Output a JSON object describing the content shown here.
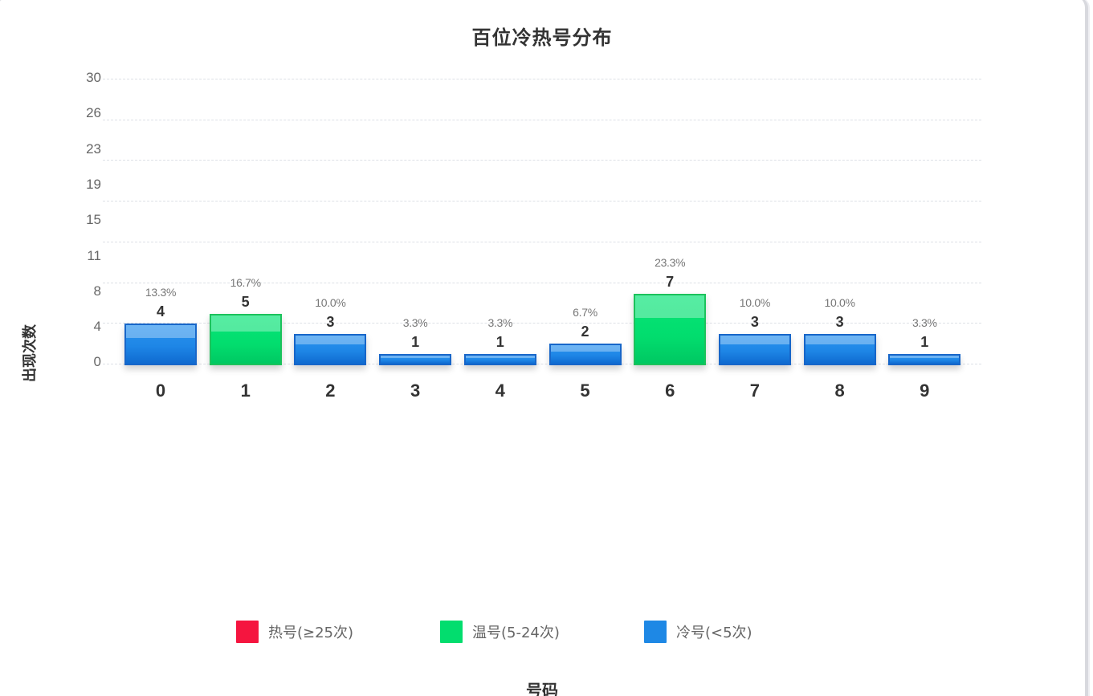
{
  "chart_data": {
    "type": "bar",
    "title": "百位冷热号分布",
    "xlabel": "号码",
    "ylabel": "出现次数",
    "categories": [
      "0",
      "1",
      "2",
      "3",
      "4",
      "5",
      "6",
      "7",
      "8",
      "9"
    ],
    "values": [
      4,
      5,
      3,
      1,
      1,
      2,
      7,
      3,
      3,
      1
    ],
    "percent_labels": [
      "13.3%",
      "16.7%",
      "10.0%",
      "3.3%",
      "3.3%",
      "6.7%",
      "23.3%",
      "10.0%",
      "10.0%",
      "3.3%"
    ],
    "classes": [
      "cold",
      "warm",
      "cold",
      "cold",
      "cold",
      "cold",
      "warm",
      "cold",
      "cold",
      "cold"
    ],
    "yticks": [
      "30",
      "26",
      "23",
      "19",
      "15",
      "11",
      "8",
      "4",
      "0"
    ],
    "ylim": [
      0,
      30
    ],
    "grid": true,
    "legend_position": "bottom",
    "legend": [
      {
        "key": "hot",
        "label": "热号(≥25次)",
        "color": "#f5153f"
      },
      {
        "key": "warm",
        "label": "温号(5-24次)",
        "color": "#02dd6e"
      },
      {
        "key": "cold",
        "label": "冷号(<5次)",
        "color": "#1e88e5"
      }
    ]
  }
}
